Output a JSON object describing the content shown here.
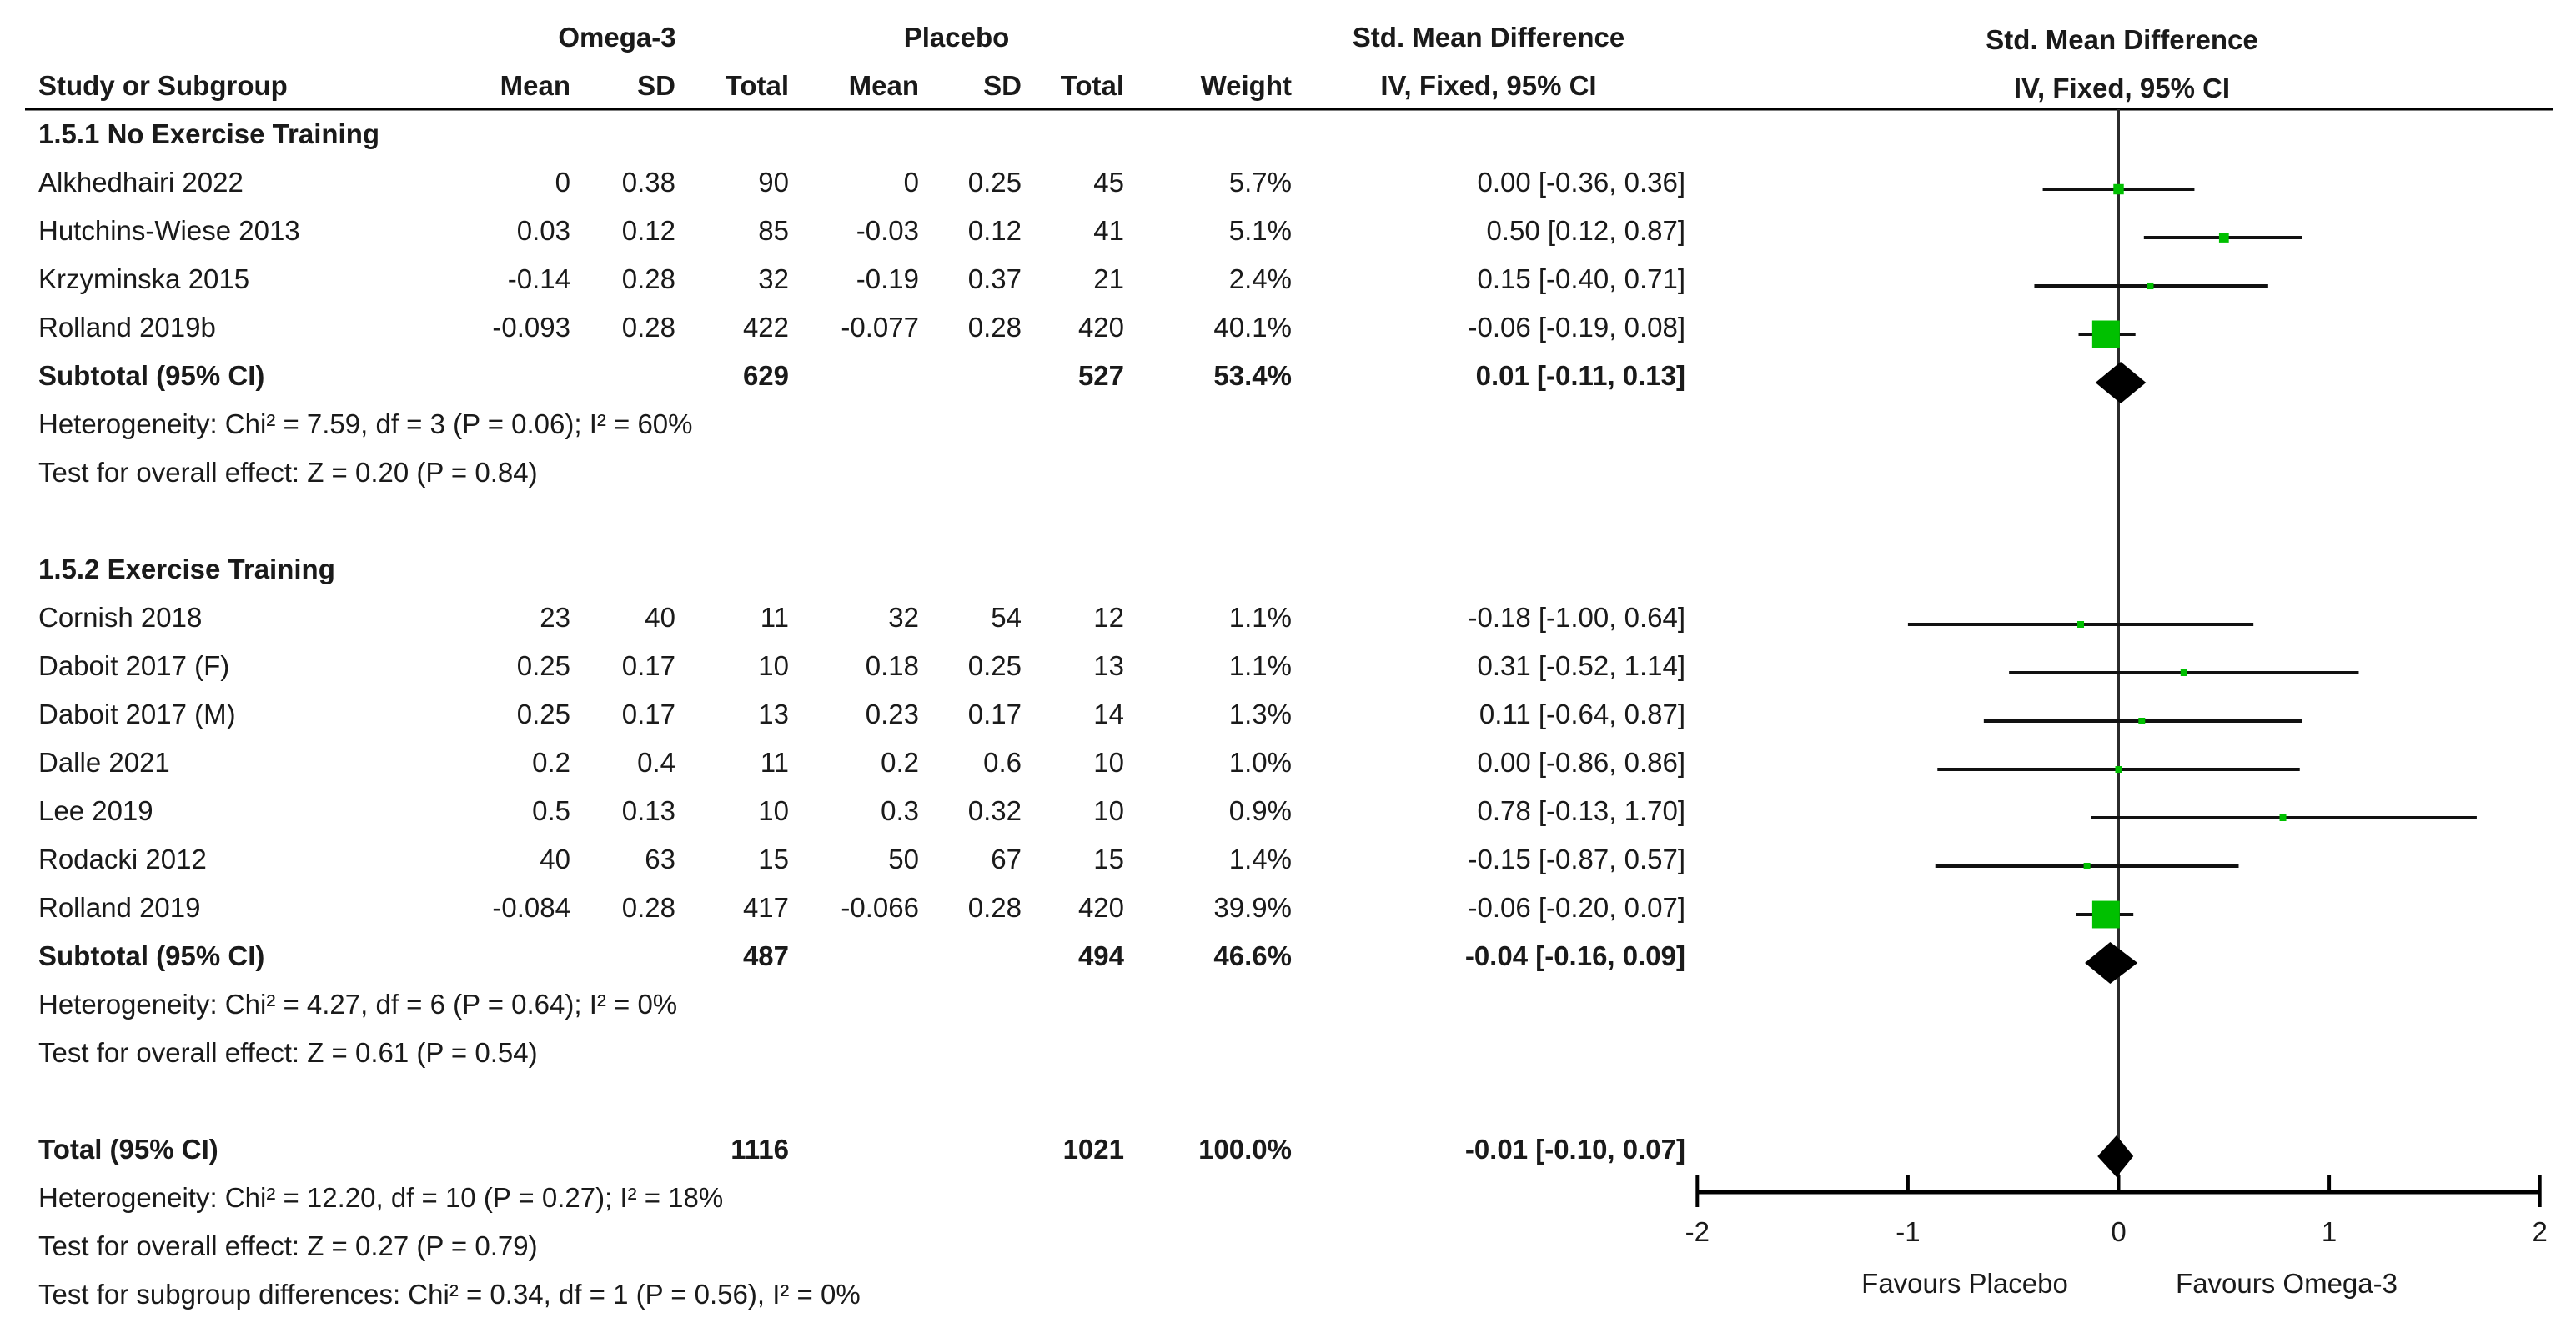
{
  "table_header": {
    "study_col": "Study or Subgroup",
    "group1": "Omega-3",
    "group2": "Placebo",
    "effect": "Std. Mean Difference",
    "mean": "Mean",
    "sd": "SD",
    "total": "Total",
    "weight": "Weight",
    "method": "IV, Fixed, 95% CI"
  },
  "right_panel": {
    "title": "Std. Mean Difference",
    "subtitle": "IV, Fixed, 95% CI"
  },
  "chart_data": {
    "type": "forest",
    "effect_measure": "Std. Mean Difference",
    "method": "IV, Fixed, 95% CI",
    "marker_color": "#00c000",
    "diamond_color": "#000000",
    "line_color": "#111111",
    "axis": {
      "min": -2,
      "max": 2,
      "ticks": [
        -2,
        -1,
        0,
        1,
        2
      ],
      "favours_left": "Favours Placebo",
      "favours_right": "Favours Omega-3"
    },
    "groups": [
      {
        "heading": "1.5.1 No Exercise Training",
        "studies": [
          {
            "name": "Alkhedhairi 2022",
            "omega": {
              "mean": "0",
              "sd": "0.38",
              "total": "90"
            },
            "placebo": {
              "mean": "0",
              "sd": "0.25",
              "total": "45"
            },
            "weight": "5.7%",
            "weight_value": 5.7,
            "ci_text": "0.00 [-0.36, 0.36]",
            "smd": {
              "est": 0.0,
              "lo": -0.36,
              "hi": 0.36
            }
          },
          {
            "name": "Hutchins-Wiese 2013",
            "omega": {
              "mean": "0.03",
              "sd": "0.12",
              "total": "85"
            },
            "placebo": {
              "mean": "-0.03",
              "sd": "0.12",
              "total": "41"
            },
            "weight": "5.1%",
            "weight_value": 5.1,
            "ci_text": "0.50 [0.12, 0.87]",
            "smd": {
              "est": 0.5,
              "lo": 0.12,
              "hi": 0.87
            }
          },
          {
            "name": "Krzyminska 2015",
            "omega": {
              "mean": "-0.14",
              "sd": "0.28",
              "total": "32"
            },
            "placebo": {
              "mean": "-0.19",
              "sd": "0.37",
              "total": "21"
            },
            "weight": "2.4%",
            "weight_value": 2.4,
            "ci_text": "0.15 [-0.40, 0.71]",
            "smd": {
              "est": 0.15,
              "lo": -0.4,
              "hi": 0.71
            }
          },
          {
            "name": "Rolland 2019b",
            "omega": {
              "mean": "-0.093",
              "sd": "0.28",
              "total": "422"
            },
            "placebo": {
              "mean": "-0.077",
              "sd": "0.28",
              "total": "420"
            },
            "weight": "40.1%",
            "weight_value": 40.1,
            "ci_text": "-0.06 [-0.19, 0.08]",
            "smd": {
              "est": -0.06,
              "lo": -0.19,
              "hi": 0.08
            }
          }
        ],
        "subtotal": {
          "label": "Subtotal (95% CI)",
          "omega_total": "629",
          "placebo_total": "527",
          "weight": "53.4%",
          "ci_text": "0.01 [-0.11, 0.13]",
          "smd": {
            "est": 0.01,
            "lo": -0.11,
            "hi": 0.13
          }
        },
        "heterogeneity": "Heterogeneity: Chi² = 7.59, df = 3 (P = 0.06); I² = 60%",
        "overall_effect": "Test for overall effect: Z = 0.20 (P = 0.84)"
      },
      {
        "heading": "1.5.2 Exercise Training",
        "studies": [
          {
            "name": "Cornish 2018",
            "omega": {
              "mean": "23",
              "sd": "40",
              "total": "11"
            },
            "placebo": {
              "mean": "32",
              "sd": "54",
              "total": "12"
            },
            "weight": "1.1%",
            "weight_value": 1.1,
            "ci_text": "-0.18 [-1.00, 0.64]",
            "smd": {
              "est": -0.18,
              "lo": -1.0,
              "hi": 0.64
            }
          },
          {
            "name": "Daboit 2017 (F)",
            "omega": {
              "mean": "0.25",
              "sd": "0.17",
              "total": "10"
            },
            "placebo": {
              "mean": "0.18",
              "sd": "0.25",
              "total": "13"
            },
            "weight": "1.1%",
            "weight_value": 1.1,
            "ci_text": "0.31 [-0.52, 1.14]",
            "smd": {
              "est": 0.31,
              "lo": -0.52,
              "hi": 1.14
            }
          },
          {
            "name": "Daboit 2017 (M)",
            "omega": {
              "mean": "0.25",
              "sd": "0.17",
              "total": "13"
            },
            "placebo": {
              "mean": "0.23",
              "sd": "0.17",
              "total": "14"
            },
            "weight": "1.3%",
            "weight_value": 1.3,
            "ci_text": "0.11 [-0.64, 0.87]",
            "smd": {
              "est": 0.11,
              "lo": -0.64,
              "hi": 0.87
            }
          },
          {
            "name": "Dalle 2021",
            "omega": {
              "mean": "0.2",
              "sd": "0.4",
              "total": "11"
            },
            "placebo": {
              "mean": "0.2",
              "sd": "0.6",
              "total": "10"
            },
            "weight": "1.0%",
            "weight_value": 1.0,
            "ci_text": "0.00 [-0.86, 0.86]",
            "smd": {
              "est": 0.0,
              "lo": -0.86,
              "hi": 0.86
            }
          },
          {
            "name": "Lee 2019",
            "omega": {
              "mean": "0.5",
              "sd": "0.13",
              "total": "10"
            },
            "placebo": {
              "mean": "0.3",
              "sd": "0.32",
              "total": "10"
            },
            "weight": "0.9%",
            "weight_value": 0.9,
            "ci_text": "0.78 [-0.13, 1.70]",
            "smd": {
              "est": 0.78,
              "lo": -0.13,
              "hi": 1.7
            }
          },
          {
            "name": "Rodacki 2012",
            "omega": {
              "mean": "40",
              "sd": "63",
              "total": "15"
            },
            "placebo": {
              "mean": "50",
              "sd": "67",
              "total": "15"
            },
            "weight": "1.4%",
            "weight_value": 1.4,
            "ci_text": "-0.15 [-0.87, 0.57]",
            "smd": {
              "est": -0.15,
              "lo": -0.87,
              "hi": 0.57
            }
          },
          {
            "name": "Rolland 2019",
            "omega": {
              "mean": "-0.084",
              "sd": "0.28",
              "total": "417"
            },
            "placebo": {
              "mean": "-0.066",
              "sd": "0.28",
              "total": "420"
            },
            "weight": "39.9%",
            "weight_value": 39.9,
            "ci_text": "-0.06 [-0.20, 0.07]",
            "smd": {
              "est": -0.06,
              "lo": -0.2,
              "hi": 0.07
            }
          }
        ],
        "subtotal": {
          "label": "Subtotal (95% CI)",
          "omega_total": "487",
          "placebo_total": "494",
          "weight": "46.6%",
          "ci_text": "-0.04 [-0.16, 0.09]",
          "smd": {
            "est": -0.04,
            "lo": -0.16,
            "hi": 0.09
          }
        },
        "heterogeneity": "Heterogeneity: Chi² = 4.27, df = 6 (P = 0.64); I² = 0%",
        "overall_effect": "Test for overall effect: Z = 0.61 (P = 0.54)"
      }
    ],
    "total": {
      "label": "Total (95% CI)",
      "omega_total": "1116",
      "placebo_total": "1021",
      "weight": "100.0%",
      "ci_text": "-0.01 [-0.10, 0.07]",
      "smd": {
        "est": -0.01,
        "lo": -0.1,
        "hi": 0.07
      }
    },
    "footer_lines": [
      "Heterogeneity: Chi² = 12.20, df = 10 (P = 0.27); I² = 18%",
      "Test for overall effect: Z = 0.27 (P = 0.79)",
      "Test for subgroup differences: Chi² = 0.34, df = 1 (P = 0.56), I² = 0%"
    ]
  }
}
